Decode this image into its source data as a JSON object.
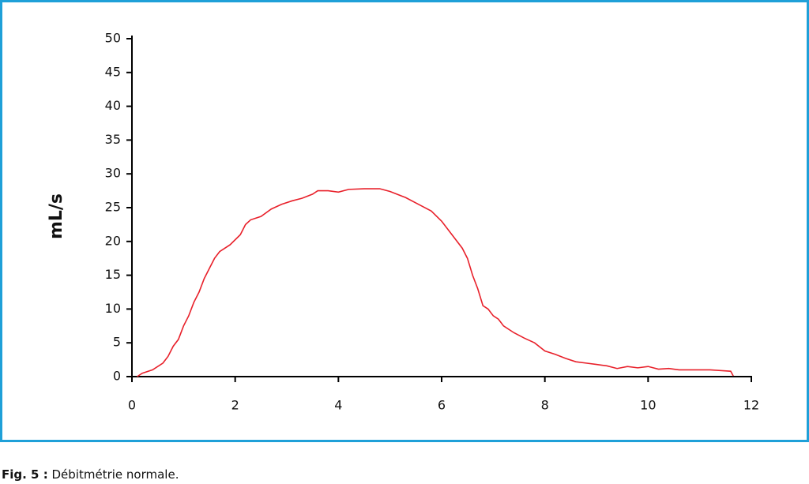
{
  "chart_data": {
    "type": "line",
    "y_label": "mL/s",
    "x": [
      0.1,
      0.2,
      0.4,
      0.6,
      0.7,
      0.8,
      0.9,
      1.0,
      1.1,
      1.2,
      1.3,
      1.4,
      1.5,
      1.6,
      1.7,
      1.9,
      2.1,
      2.2,
      2.3,
      2.5,
      2.7,
      2.9,
      3.1,
      3.3,
      3.5,
      3.6,
      3.8,
      4.0,
      4.2,
      4.5,
      4.8,
      5.0,
      5.3,
      5.6,
      5.8,
      6.0,
      6.2,
      6.4,
      6.5,
      6.6,
      6.7,
      6.8,
      6.9,
      7.0,
      7.1,
      7.2,
      7.4,
      7.6,
      7.8,
      8.0,
      8.2,
      8.4,
      8.6,
      8.8,
      9.0,
      9.2,
      9.4,
      9.6,
      9.8,
      10.0,
      10.2,
      10.4,
      10.6,
      10.8,
      11.0,
      11.2,
      11.4,
      11.6,
      11.65
    ],
    "series": [
      {
        "color": "#e8202a",
        "values": [
          0,
          0.5,
          1,
          2,
          3,
          4.5,
          5.5,
          7.5,
          9,
          11,
          12.5,
          14.5,
          16,
          17.5,
          18.5,
          19.5,
          21,
          22.5,
          23.2,
          23.7,
          24.8,
          25.5,
          26,
          26.4,
          27,
          27.5,
          27.5,
          27.3,
          27.7,
          27.8,
          27.8,
          27.4,
          26.5,
          25.3,
          24.5,
          23,
          21,
          19,
          17.5,
          15,
          13,
          10.5,
          10,
          9,
          8.5,
          7.5,
          6.5,
          5.7,
          5,
          3.8,
          3.3,
          2.7,
          2.2,
          2,
          1.8,
          1.6,
          1.2,
          1.5,
          1.3,
          1.5,
          1.1,
          1.2,
          1.0,
          1.0,
          1.0,
          1.0,
          0.9,
          0.8,
          0.1
        ]
      }
    ],
    "xlim": [
      0,
      12
    ],
    "xticks": [
      0,
      2,
      4,
      6,
      8,
      10,
      12
    ],
    "ylim": [
      0,
      50
    ],
    "yticks": [
      0,
      5,
      10,
      15,
      20,
      25,
      30,
      35,
      40,
      45,
      50
    ]
  },
  "caption": {
    "label": "Fig. 5 :",
    "text": "Débitmétrie normale."
  }
}
